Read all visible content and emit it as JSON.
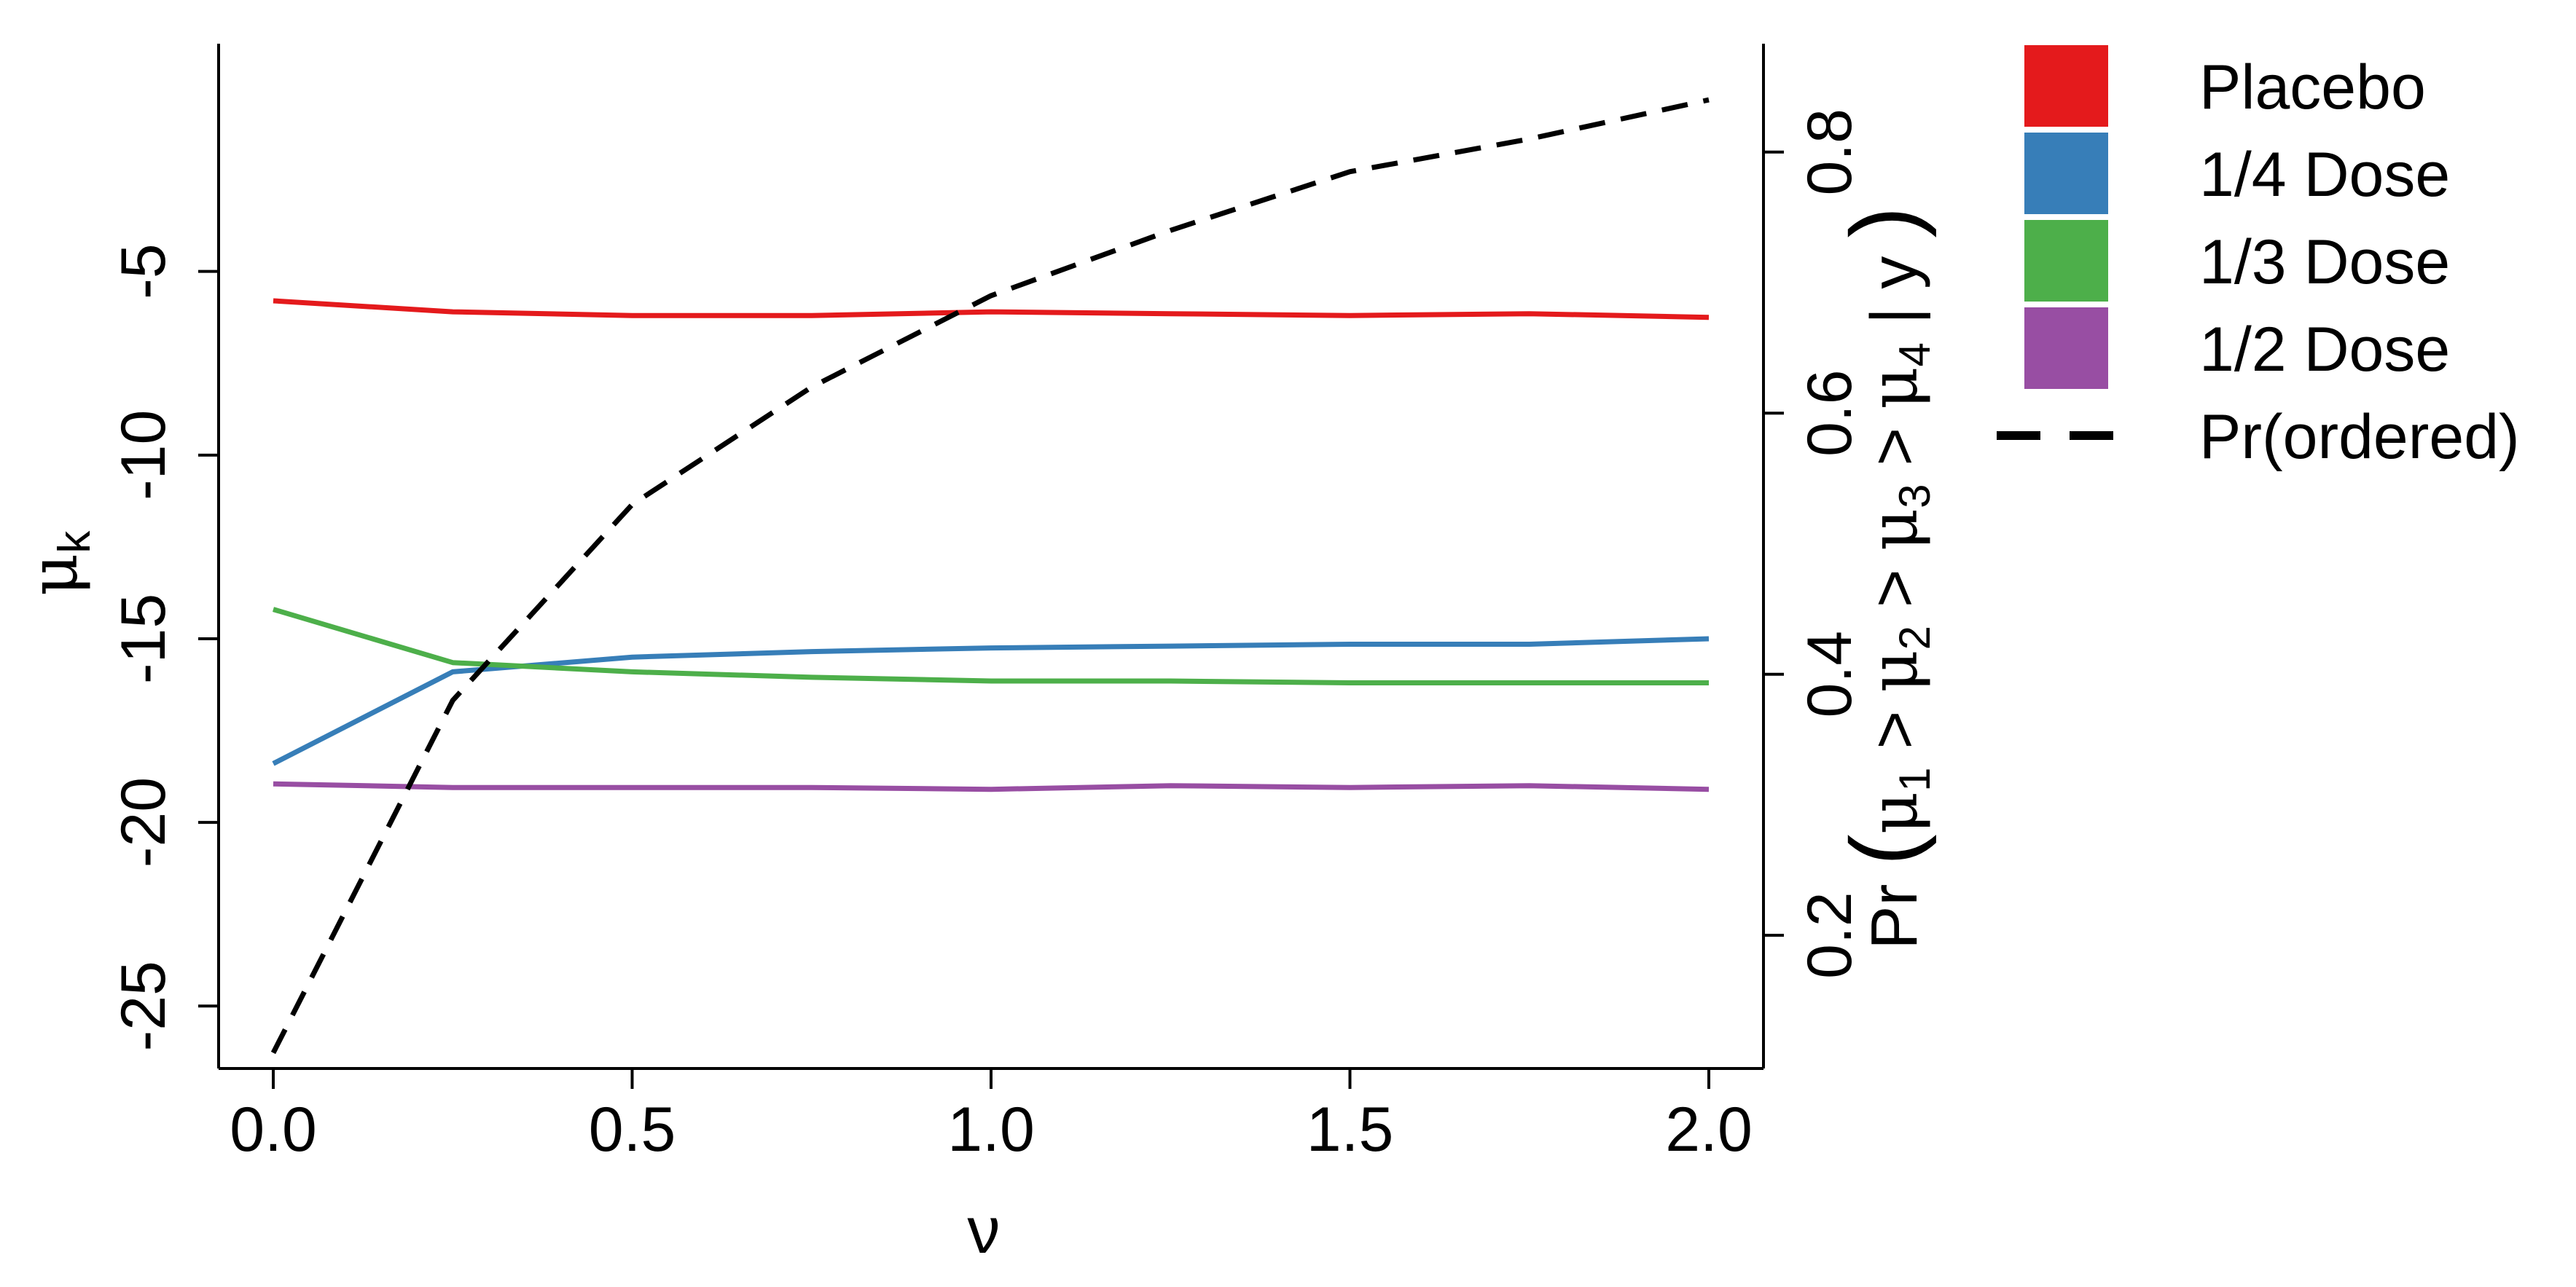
{
  "chart_data": {
    "type": "line",
    "xlabel": "ν",
    "ylabel": {
      "base": "μ",
      "sub": "k"
    },
    "y2label": {
      "prefix": "Pr",
      "open": "(",
      "mu": "μ",
      "subs": [
        "1",
        "2",
        "3",
        "4"
      ],
      "gt": ">",
      "given": "| y",
      "close": ")"
    },
    "xlim": [
      0,
      2
    ],
    "ylim": [
      -26.7,
      1.2
    ],
    "y2lim": [
      0.098,
      0.883
    ],
    "x_ticks": [
      "0.0",
      "0.5",
      "1.0",
      "1.5",
      "2.0"
    ],
    "y_ticks": [
      "-5",
      "-10",
      "-15",
      "-20",
      "-25"
    ],
    "y2_ticks": [
      "0.2",
      "0.4",
      "0.6",
      "0.8"
    ],
    "x": [
      0,
      0.25,
      0.5,
      0.75,
      1.0,
      1.25,
      1.5,
      1.75,
      2.0
    ],
    "series": [
      {
        "name": "Placebo",
        "color": "#e41a1c",
        "axis": "left",
        "values": [
          -5.8,
          -6.1,
          -6.2,
          -6.2,
          -6.1,
          -6.15,
          -6.2,
          -6.15,
          -6.25
        ]
      },
      {
        "name": "1/4 Dose",
        "color": "#377eb8",
        "axis": "left",
        "values": [
          -18.4,
          -15.9,
          -15.5,
          -15.35,
          -15.25,
          -15.2,
          -15.15,
          -15.15,
          -15.0
        ]
      },
      {
        "name": "1/3 Dose",
        "color": "#4daf4a",
        "axis": "left",
        "values": [
          -14.2,
          -15.65,
          -15.9,
          -16.05,
          -16.15,
          -16.15,
          -16.2,
          -16.2,
          -16.2
        ]
      },
      {
        "name": "1/2 Dose",
        "color": "#984ea3",
        "axis": "left",
        "values": [
          -18.95,
          -19.05,
          -19.05,
          -19.05,
          -19.1,
          -19.0,
          -19.05,
          -19.0,
          -19.1
        ]
      },
      {
        "name": "Pr(ordered)",
        "color": "#000000",
        "axis": "right",
        "dashed": true,
        "values": [
          0.11,
          0.38,
          0.53,
          0.62,
          0.69,
          0.74,
          0.785,
          0.81,
          0.84
        ]
      }
    ],
    "legend_position": "outside-right"
  }
}
